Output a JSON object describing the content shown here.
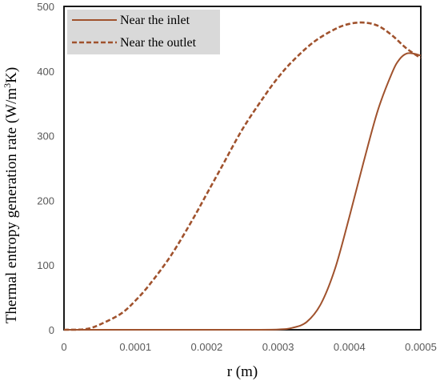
{
  "chart_data": {
    "type": "line",
    "xlabel": "r (m)",
    "ylabel_main": "Thermal entropy generation rate (W/m",
    "ylabel_sup": "3",
    "ylabel_tail": "K)",
    "xlim": [
      0,
      0.0005
    ],
    "ylim": [
      0,
      500
    ],
    "x_ticks": [
      "0",
      "0.0001",
      "0.0002",
      "0.0003",
      "0.0004",
      "0.0005"
    ],
    "x_tick_values": [
      0,
      0.0001,
      0.0002,
      0.0003,
      0.0004,
      0.0005
    ],
    "y_ticks": [
      "0",
      "100",
      "200",
      "300",
      "400",
      "500"
    ],
    "y_tick_values": [
      0,
      100,
      200,
      300,
      400,
      500
    ],
    "grid": false,
    "legend_position": "top-left",
    "line_color": "#a0522d",
    "legend_background": "#d9d9d9",
    "series": [
      {
        "name": "Near the inlet",
        "style": "solid",
        "x": [
          0,
          5e-05,
          0.0001,
          0.00015,
          0.0002,
          0.00025,
          0.0003,
          0.00032,
          0.00034,
          0.00036,
          0.00038,
          0.0004,
          0.00042,
          0.00044,
          0.00046,
          0.00047,
          0.00048,
          0.00049,
          0.0005
        ],
        "y": [
          0,
          0,
          0,
          0,
          0,
          0,
          0.5,
          3,
          12,
          40,
          95,
          175,
          260,
          340,
          398,
          418,
          427,
          427,
          424
        ]
      },
      {
        "name": "Near the outlet",
        "style": "dashed",
        "x": [
          0,
          3e-05,
          5e-05,
          8e-05,
          0.0001,
          0.00012,
          0.00015,
          0.00018,
          0.0002,
          0.00022,
          0.00025,
          0.00028,
          0.0003,
          0.00032,
          0.00035,
          0.00038,
          0.0004,
          0.00042,
          0.00044,
          0.00046,
          0.00048,
          0.0005
        ],
        "y": [
          0,
          1,
          8,
          25,
          45,
          70,
          115,
          170,
          210,
          250,
          310,
          360,
          390,
          415,
          445,
          465,
          473,
          475,
          470,
          455,
          435,
          420
        ]
      }
    ]
  }
}
